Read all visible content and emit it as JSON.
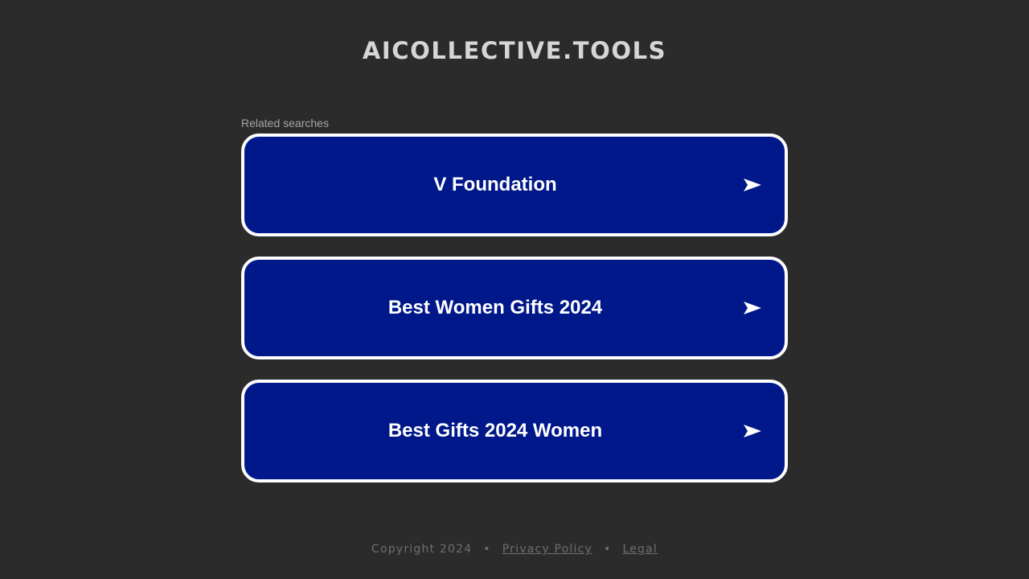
{
  "header": {
    "site_title": "AICOLLECTIVE.TOOLS"
  },
  "related": {
    "label": "Related searches",
    "items": [
      {
        "label": "V Foundation",
        "icon": "arrow-right-icon"
      },
      {
        "label": "Best Women Gifts 2024",
        "icon": "arrow-right-icon"
      },
      {
        "label": "Best Gifts 2024 Women",
        "icon": "arrow-right-icon"
      }
    ]
  },
  "footer": {
    "copyright": "Copyright 2024",
    "separator": "•",
    "privacy_label": "Privacy Policy",
    "legal_label": "Legal"
  },
  "colors": {
    "background": "#2b2b2b",
    "card_fill": "#00188a",
    "card_border": "#ffffff",
    "title_text": "#d6d6d6",
    "footer_text": "#6e6e6e"
  }
}
